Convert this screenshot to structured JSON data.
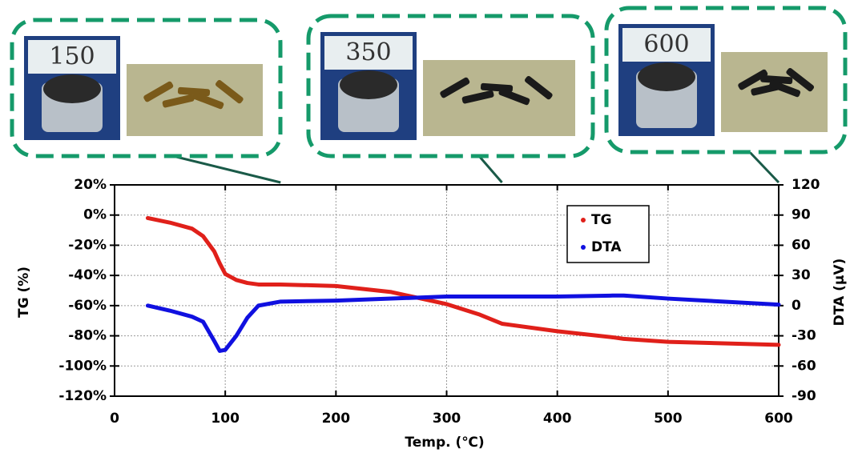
{
  "chart_data": {
    "type": "line",
    "x_label": "Temp. (℃)",
    "y_label": "TG (%)",
    "y2_label": "DTA (μV)",
    "x": [
      30,
      50,
      70,
      80,
      90,
      95,
      100,
      110,
      120,
      130,
      150,
      200,
      250,
      300,
      330,
      350,
      400,
      450,
      460,
      500,
      550,
      600
    ],
    "series": [
      {
        "name": "TG",
        "color": "#e0201a",
        "values": [
          -2,
          -5,
          -9,
          -14,
          -24,
          -32,
          -39,
          -43,
          -45,
          -46,
          -46,
          -47,
          -51,
          -59,
          -66,
          -72,
          -77,
          -81,
          -82,
          -84,
          -85,
          -86
        ]
      },
      {
        "name": "DTA",
        "color": "#1010e0",
        "axis": "y2",
        "values": [
          0,
          -5,
          -11,
          -16,
          -35,
          -45,
          -44,
          -30,
          -12,
          0,
          4,
          5,
          7,
          9,
          9,
          9,
          9,
          10,
          10,
          7,
          4,
          1
        ]
      }
    ],
    "xlim": [
      0,
      600
    ],
    "xticks": [
      0,
      100,
      200,
      300,
      400,
      500,
      600
    ],
    "ylim": [
      -120,
      20
    ],
    "yticks": [
      {
        "value": -120,
        "label": "-120%"
      },
      {
        "value": -100,
        "label": "-100%"
      },
      {
        "value": -80,
        "label": "-80%"
      },
      {
        "value": -60,
        "label": "-60%"
      },
      {
        "value": -40,
        "label": "-40%"
      },
      {
        "value": -20,
        "label": "-20%"
      },
      {
        "value": 0,
        "label": "0%"
      },
      {
        "value": 20,
        "label": "20%"
      }
    ],
    "y2lim": [
      -90,
      120
    ],
    "y2ticks": [
      -90,
      -60,
      -30,
      0,
      30,
      60,
      90,
      120
    ],
    "grid": true,
    "legend": "upper right",
    "annotations": [
      {
        "label": "150",
        "x": 150
      },
      {
        "label": "350",
        "x": 350
      },
      {
        "label": "600",
        "x": 600
      }
    ]
  }
}
